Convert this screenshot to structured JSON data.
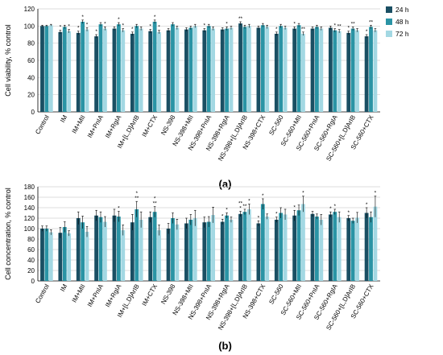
{
  "colors": {
    "s24": "#1a4f63",
    "s48": "#2a94a5",
    "s72": "#a3d8e3",
    "error": "#000000",
    "grid": "#d0d0d0",
    "axis": "#000000"
  },
  "chart_data": [
    {
      "type": "bar",
      "panel_label": "(a)",
      "ylabel": "Cell viability, % control",
      "xlabel": "",
      "ylim": [
        0,
        120
      ],
      "yticks": [
        0,
        20,
        40,
        60,
        80,
        100,
        120
      ],
      "grid": true,
      "legend": "right",
      "categories": [
        "Control",
        "IM",
        "IM+MII",
        "IM+PnIA",
        "IM+RgIA",
        "IM+[L,D]ArIB",
        "IM+CTX",
        "NS-398",
        "NS-398+MII",
        "NS-398+PnIA",
        "NS-398+RgIA",
        "NS-398+[L,D]ArIB",
        "NS-398+CTX",
        "SC-560",
        "SC-560+MII",
        "SC-560+PnIA",
        "SC-560+RgIA",
        "SC-560+[L,D]ArIB",
        "SC-560+CTX"
      ],
      "series": [
        {
          "name": "24 h",
          "values": [
            100,
            93,
            92,
            88,
            97,
            91,
            94,
            95,
            96,
            95,
            96,
            103,
            98,
            91,
            97,
            97,
            98,
            92,
            88
          ],
          "errors": [
            1,
            2,
            2,
            2,
            2,
            2,
            2,
            2,
            2,
            2,
            2,
            2,
            2,
            2,
            2,
            2,
            2,
            2,
            2
          ]
        },
        {
          "name": "48 h",
          "values": [
            100,
            99,
            105,
            102,
            102,
            100,
            105,
            102,
            98,
            100,
            97,
            99,
            101,
            100,
            101,
            99,
            95,
            97,
            99
          ],
          "errors": [
            1,
            2,
            2,
            2,
            2,
            2,
            2,
            2,
            2,
            2,
            2,
            2,
            2,
            2,
            2,
            2,
            2,
            2,
            2
          ]
        },
        {
          "name": "72 h",
          "values": [
            101,
            94,
            96,
            97,
            95,
            97,
            93,
            98,
            100,
            97,
            98,
            100,
            99,
            98,
            91,
            97,
            94,
            95,
            95
          ],
          "errors": [
            1,
            2,
            2,
            2,
            2,
            2,
            2,
            2,
            2,
            2,
            2,
            2,
            2,
            2,
            2,
            2,
            2,
            2,
            2
          ]
        }
      ],
      "annotations": [
        {
          "category": 1,
          "series": 0,
          "text": "*"
        },
        {
          "category": 1,
          "series": 2,
          "text": "*"
        },
        {
          "category": 2,
          "series": 0,
          "text": "*"
        },
        {
          "category": 2,
          "series": 1,
          "text": "*"
        },
        {
          "category": 2,
          "series": 2,
          "text": "*"
        },
        {
          "category": 3,
          "series": 0,
          "text": "*"
        },
        {
          "category": 3,
          "series": 2,
          "text": "*"
        },
        {
          "category": 4,
          "series": 1,
          "text": "*"
        },
        {
          "category": 4,
          "series": 2,
          "text": "*"
        },
        {
          "category": 5,
          "series": 0,
          "text": "*"
        },
        {
          "category": 6,
          "series": 0,
          "text": "*"
        },
        {
          "category": 6,
          "series": 1,
          "text": "*"
        },
        {
          "category": 6,
          "series": 2,
          "text": "*"
        },
        {
          "category": 9,
          "series": 0,
          "text": "*"
        },
        {
          "category": 10,
          "series": 1,
          "text": "*"
        },
        {
          "category": 11,
          "series": 0,
          "text": "**"
        },
        {
          "category": 13,
          "series": 0,
          "text": "*"
        },
        {
          "category": 14,
          "series": 0,
          "text": "*"
        },
        {
          "category": 14,
          "series": 2,
          "text": "**"
        },
        {
          "category": 16,
          "series": 1,
          "text": "*"
        },
        {
          "category": 16,
          "series": 2,
          "text": "**"
        },
        {
          "category": 17,
          "series": 0,
          "text": "*"
        },
        {
          "category": 17,
          "series": 1,
          "text": "**"
        },
        {
          "category": 18,
          "series": 0,
          "text": "*"
        },
        {
          "category": 18,
          "series": 1,
          "text": "**"
        }
      ]
    },
    {
      "type": "bar",
      "panel_label": "(b)",
      "ylabel": "Cell concentration, % control",
      "xlabel": "",
      "ylim": [
        0,
        180
      ],
      "yticks": [
        0,
        20,
        40,
        60,
        80,
        100,
        120,
        140,
        160,
        180
      ],
      "grid": true,
      "legend": "none",
      "categories": [
        "Control",
        "IM",
        "IM+MII",
        "IM+PnIA",
        "IM+RgIA",
        "IM+[L,D]ArIB",
        "IM+CTX",
        "NS-398",
        "NS-398+MII",
        "NS-398+PnIA",
        "NS-398+RgIA",
        "NS-398+[L,D]ArIB",
        "NS-398+CTX",
        "SC-560",
        "SC-560+MII",
        "SC-560+PnIA",
        "SC-560+RgIA",
        "SC-560+[L,D]ArIB",
        "SC-560+CTX"
      ],
      "series": [
        {
          "name": "24 h",
          "values": [
            100,
            92,
            120,
            125,
            125,
            112,
            122,
            100,
            110,
            112,
            113,
            128,
            110,
            117,
            125,
            128,
            127,
            120,
            130
          ],
          "errors": [
            5,
            10,
            12,
            10,
            12,
            15,
            10,
            10,
            10,
            10,
            5,
            5,
            5,
            5,
            10,
            5,
            5,
            5,
            10
          ]
        },
        {
          "name": "48 h",
          "values": [
            100,
            103,
            112,
            122,
            123,
            137,
            132,
            120,
            117,
            113,
            125,
            132,
            147,
            130,
            135,
            123,
            132,
            115,
            122
          ],
          "errors": [
            5,
            10,
            12,
            10,
            10,
            15,
            10,
            10,
            10,
            10,
            5,
            5,
            10,
            10,
            10,
            5,
            5,
            5,
            10
          ]
        },
        {
          "name": "72 h",
          "values": [
            93,
            91,
            94,
            113,
            97,
            117,
            97,
            108,
            120,
            126,
            117,
            137,
            123,
            127,
            147,
            117,
            122,
            121,
            142
          ],
          "errors": [
            5,
            5,
            10,
            10,
            10,
            15,
            10,
            10,
            15,
            15,
            5,
            10,
            5,
            10,
            15,
            10,
            10,
            10,
            20
          ]
        }
      ],
      "annotations": [
        {
          "category": 4,
          "series": 1,
          "text": "*"
        },
        {
          "category": 5,
          "series": 1,
          "text": "*\n**"
        },
        {
          "category": 6,
          "series": 1,
          "text": "*\n**"
        },
        {
          "category": 10,
          "series": 0,
          "text": "*"
        },
        {
          "category": 10,
          "series": 1,
          "text": "*"
        },
        {
          "category": 11,
          "series": 0,
          "text": "**\n*"
        },
        {
          "category": 11,
          "series": 1,
          "text": "**"
        },
        {
          "category": 11,
          "series": 2,
          "text": "*"
        },
        {
          "category": 12,
          "series": 0,
          "text": "*"
        },
        {
          "category": 12,
          "series": 1,
          "text": "*"
        },
        {
          "category": 13,
          "series": 0,
          "text": "*"
        },
        {
          "category": 14,
          "series": 0,
          "text": "*"
        },
        {
          "category": 14,
          "series": 2,
          "text": "*"
        },
        {
          "category": 16,
          "series": 0,
          "text": "*"
        },
        {
          "category": 16,
          "series": 1,
          "text": "*"
        },
        {
          "category": 17,
          "series": 0,
          "text": "*"
        },
        {
          "category": 18,
          "series": 0,
          "text": "*"
        },
        {
          "category": 18,
          "series": 2,
          "text": "*"
        }
      ]
    }
  ]
}
